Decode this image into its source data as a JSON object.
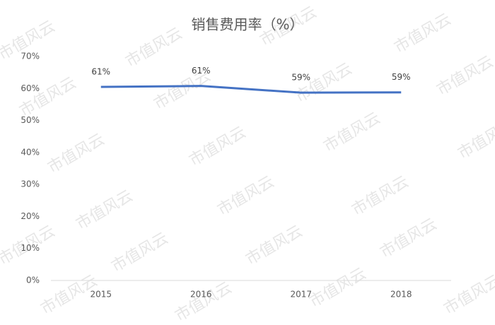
{
  "chart_data": {
    "type": "line",
    "title": "销售费用率（%）",
    "categories": [
      "2015",
      "2016",
      "2017",
      "2018"
    ],
    "series": [
      {
        "name": "销售费用率",
        "color": "#4472c4",
        "values": [
          60.5,
          60.8,
          58.7,
          58.8
        ],
        "value_labels": [
          "61%",
          "61%",
          "59%",
          "59%"
        ]
      }
    ],
    "ylim": [
      0,
      70
    ],
    "yticks": [
      {
        "value": 0,
        "label": "0%"
      },
      {
        "value": 10,
        "label": "10%"
      },
      {
        "value": 20,
        "label": "20%"
      },
      {
        "value": 30,
        "label": "30%"
      },
      {
        "value": 40,
        "label": "40%"
      },
      {
        "value": 50,
        "label": "50%"
      },
      {
        "value": 60,
        "label": "60%"
      },
      {
        "value": 70,
        "label": "70%"
      }
    ],
    "grid": false,
    "legend": false,
    "watermark": "市值风云"
  }
}
